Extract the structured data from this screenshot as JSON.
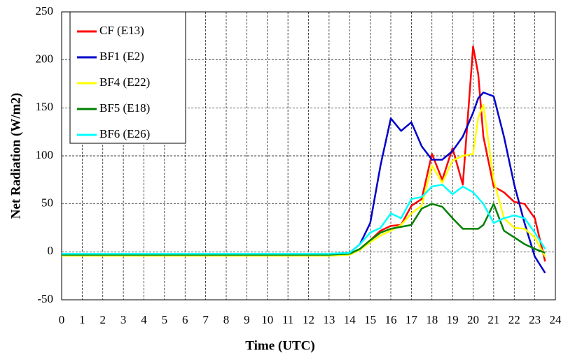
{
  "chart_data": {
    "type": "line",
    "xlabel": "Time (UTC)",
    "ylabel": "Net Radiation (W/m2)",
    "x": [
      0,
      1,
      2,
      3,
      4,
      5,
      6,
      7,
      8,
      9,
      10,
      11,
      12,
      13,
      14,
      14.5,
      15,
      15.5,
      16,
      16.5,
      17,
      17.5,
      18,
      18.5,
      19,
      19.5,
      20,
      20.25,
      20.5,
      21,
      21.5,
      22,
      22.5,
      23,
      23.5
    ],
    "series": [
      {
        "name": "CF (E13)",
        "color": "#ff0000",
        "values": [
          -3,
          -3,
          -3,
          -3,
          -3,
          -3,
          -3,
          -3,
          -3,
          -3,
          -3,
          -3,
          -3,
          -3,
          -2,
          3,
          12,
          22,
          27,
          28,
          48,
          55,
          102,
          75,
          108,
          70,
          214,
          185,
          120,
          68,
          62,
          52,
          50,
          35,
          -10
        ]
      },
      {
        "name": "BF1 (E2)",
        "color": "#0000cc",
        "values": [
          -3,
          -3,
          -3,
          -3,
          -3,
          -3,
          -3,
          -3,
          -3,
          -3,
          -3,
          -3,
          -3,
          -3,
          -1,
          8,
          30,
          90,
          139,
          126,
          135,
          110,
          96,
          96,
          105,
          120,
          145,
          160,
          166,
          162,
          120,
          70,
          30,
          -5,
          -22
        ]
      },
      {
        "name": "BF4 (E22)",
        "color": "#ffff00",
        "values": [
          -4,
          -4,
          -4,
          -4,
          -4,
          -4,
          -4,
          -4,
          -4,
          -4,
          -4,
          -4,
          -4,
          -4,
          -3,
          2,
          10,
          17,
          22,
          28,
          40,
          48,
          90,
          72,
          95,
          100,
          102,
          140,
          153,
          75,
          35,
          25,
          24,
          15,
          -5
        ]
      },
      {
        "name": "BF5 (E18)",
        "color": "#008000",
        "values": [
          -3,
          -3,
          -3,
          -3,
          -3,
          -3,
          -3,
          -3,
          -3,
          -3,
          -3,
          -3,
          -3,
          -3,
          -2,
          3,
          12,
          20,
          24,
          26,
          28,
          45,
          50,
          47,
          35,
          24,
          24,
          24,
          28,
          50,
          22,
          15,
          8,
          3,
          -1
        ]
      },
      {
        "name": "BF6 (E26)",
        "color": "#00ffff",
        "values": [
          -2,
          -2,
          -2,
          -2,
          -2,
          -2,
          -2,
          -2,
          -2,
          -2,
          -2,
          -2,
          -2,
          -2,
          -1,
          8,
          20,
          25,
          40,
          35,
          55,
          57,
          68,
          70,
          60,
          68,
          62,
          56,
          50,
          30,
          35,
          38,
          35,
          20,
          3
        ]
      }
    ],
    "xlim": [
      0,
      24
    ],
    "xticks": [
      0,
      1,
      2,
      3,
      4,
      5,
      6,
      7,
      8,
      9,
      10,
      11,
      12,
      13,
      14,
      15,
      16,
      17,
      18,
      19,
      20,
      21,
      22,
      23,
      24
    ],
    "ylim": [
      -50,
      250
    ],
    "yticks": [
      -50,
      0,
      50,
      100,
      150,
      200,
      250
    ],
    "grid": true,
    "legend": "upper left"
  }
}
